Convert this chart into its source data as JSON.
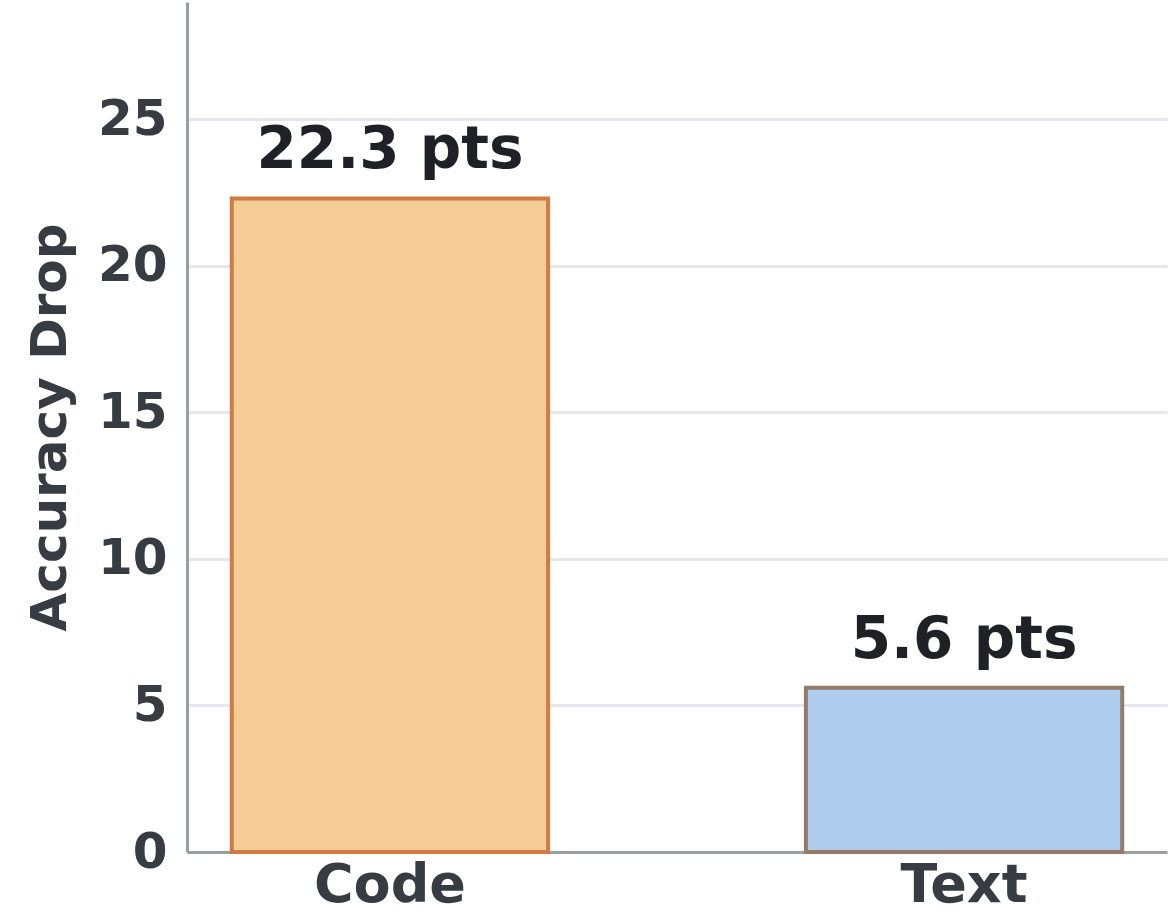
{
  "chart_data": {
    "type": "bar",
    "ylabel": "Accuracy Drop",
    "categories": [
      "Code",
      "Text"
    ],
    "values": [
      22.3,
      5.6
    ],
    "colors": [
      "#f5cb96",
      "#afcdee"
    ],
    "value_labels": [
      "22.3 pts",
      "5.6 pts"
    ],
    "ylim": [
      0,
      29
    ],
    "yticks": [
      0,
      5,
      10,
      15,
      20,
      25
    ],
    "grid": "y"
  }
}
